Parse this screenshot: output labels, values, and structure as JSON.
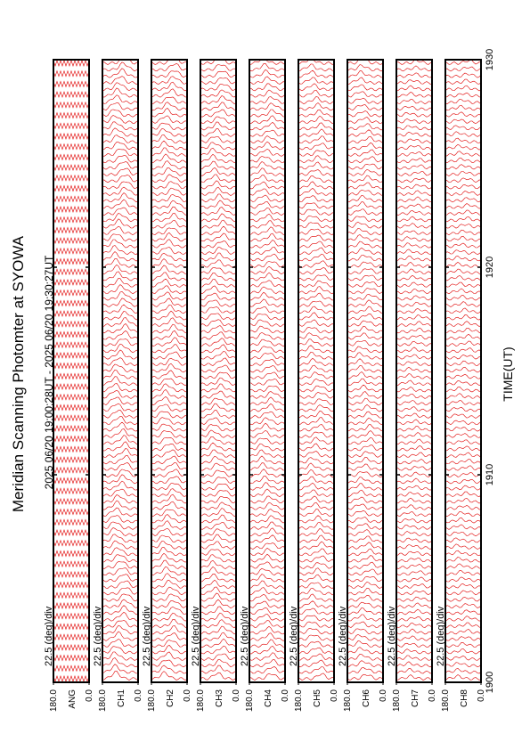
{
  "chart_data": {
    "type": "stacked-panels",
    "title": "Meridian Scanning Photomter at SYOWA",
    "subtitle": "2025 06/20 19:00:28UT - 2025 06/20 19:30:27UT",
    "xlabel": "TIME(UT)",
    "xlim": [
      1900,
      1930
    ],
    "xticks": [
      1900,
      1910,
      1920,
      1930
    ],
    "scale_label": "22.5 (deg)/div",
    "color": "#e00000",
    "panels": [
      {
        "name": "ANG",
        "yticks": [
          {
            "value": 180,
            "label": "180.0"
          },
          {
            "value": 0,
            "label": "0.0"
          }
        ]
      },
      {
        "name": "CH1",
        "yticks": [
          {
            "value": 180,
            "label": "180.0"
          },
          {
            "value": 0,
            "label": "0.0"
          }
        ]
      },
      {
        "name": "CH2",
        "yticks": [
          {
            "value": 180,
            "label": "180.0"
          },
          {
            "value": 0,
            "label": "0.0"
          }
        ]
      },
      {
        "name": "CH3",
        "yticks": [
          {
            "value": 180,
            "label": "180.0"
          },
          {
            "value": 0,
            "label": "0.0"
          }
        ]
      },
      {
        "name": "CH4",
        "yticks": [
          {
            "value": 180,
            "label": "180.0"
          },
          {
            "value": 0,
            "label": "0.0"
          }
        ]
      },
      {
        "name": "CH5",
        "yticks": [
          {
            "value": 180,
            "label": "180.0"
          },
          {
            "value": 0,
            "label": "0.0"
          }
        ]
      },
      {
        "name": "CH6",
        "yticks": [
          {
            "value": 180,
            "label": "180.0"
          },
          {
            "value": 0,
            "label": "0.0"
          }
        ]
      },
      {
        "name": "CH7",
        "yticks": [
          {
            "value": 180,
            "label": "180.0"
          },
          {
            "value": 0,
            "label": "0.0"
          }
        ]
      },
      {
        "name": "CH8",
        "yticks": [
          {
            "value": 180,
            "label": "180.0"
          },
          {
            "value": 0,
            "label": "0.0"
          }
        ]
      }
    ]
  }
}
